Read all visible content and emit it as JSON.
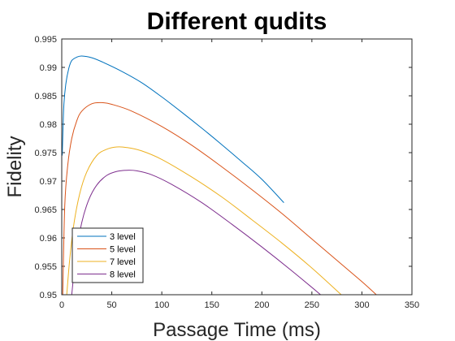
{
  "chart_data": {
    "type": "line",
    "title": "Different qudits",
    "xlabel": "Passage Time (ms)",
    "ylabel": "Fidelity",
    "xlim": [
      0,
      350
    ],
    "ylim": [
      0.95,
      0.995
    ],
    "xticks": [
      0,
      50,
      100,
      150,
      200,
      250,
      300,
      350
    ],
    "yticks": [
      0.95,
      0.955,
      0.96,
      0.965,
      0.97,
      0.975,
      0.98,
      0.985,
      0.99,
      0.995
    ],
    "xtick_labels": [
      "0",
      "50",
      "100",
      "150",
      "200",
      "250",
      "300",
      "350"
    ],
    "ytick_labels": [
      "0.95",
      "0.955",
      "0.96",
      "0.965",
      "0.97",
      "0.975",
      "0.98",
      "0.985",
      "0.99",
      "0.995"
    ],
    "grid": false,
    "legend_position": "bottom-left",
    "series": [
      {
        "name": "3 level",
        "color": "#0072BD",
        "x": [
          0.5,
          2,
          4,
          7,
          10,
          15,
          20,
          30,
          40,
          60,
          80,
          100,
          120,
          140,
          160,
          180,
          200,
          222
        ],
        "y": [
          0.9745,
          0.983,
          0.987,
          0.9898,
          0.9912,
          0.9918,
          0.992,
          0.9917,
          0.991,
          0.9893,
          0.9873,
          0.9848,
          0.9821,
          0.9793,
          0.9764,
          0.9734,
          0.9703,
          0.9662
        ]
      },
      {
        "name": "5 level",
        "color": "#D95319",
        "x": [
          1,
          3,
          6,
          10,
          15,
          20,
          30,
          40,
          50,
          70,
          100,
          130,
          160,
          190,
          220,
          250,
          280,
          300,
          320
        ],
        "y": [
          0.95,
          0.9656,
          0.9728,
          0.9775,
          0.9806,
          0.9823,
          0.9836,
          0.9838,
          0.9835,
          0.9823,
          0.9796,
          0.9763,
          0.9725,
          0.9685,
          0.9643,
          0.9598,
          0.9553,
          0.9523,
          0.9491
        ]
      },
      {
        "name": "7 level",
        "color": "#EDB120",
        "x": [
          5,
          8,
          12,
          18,
          25,
          35,
          45,
          55,
          65,
          80,
          100,
          130,
          160,
          190,
          220,
          250,
          280,
          300
        ],
        "y": [
          0.95,
          0.9563,
          0.9623,
          0.9678,
          0.9716,
          0.9745,
          0.9756,
          0.976,
          0.9759,
          0.9753,
          0.9738,
          0.9707,
          0.9672,
          0.9632,
          0.9591,
          0.9547,
          0.9499,
          0.9467
        ]
      },
      {
        "name": "8 level",
        "color": "#7E2F8E",
        "x": [
          10,
          14,
          20,
          27,
          35,
          45,
          55,
          65,
          75,
          90,
          110,
          140,
          170,
          200,
          230,
          260,
          290
        ],
        "y": [
          0.95,
          0.9567,
          0.9627,
          0.9667,
          0.9693,
          0.971,
          0.9717,
          0.9719,
          0.9718,
          0.9711,
          0.9694,
          0.9662,
          0.9624,
          0.9584,
          0.9542,
          0.9498,
          0.9452
        ]
      }
    ]
  }
}
